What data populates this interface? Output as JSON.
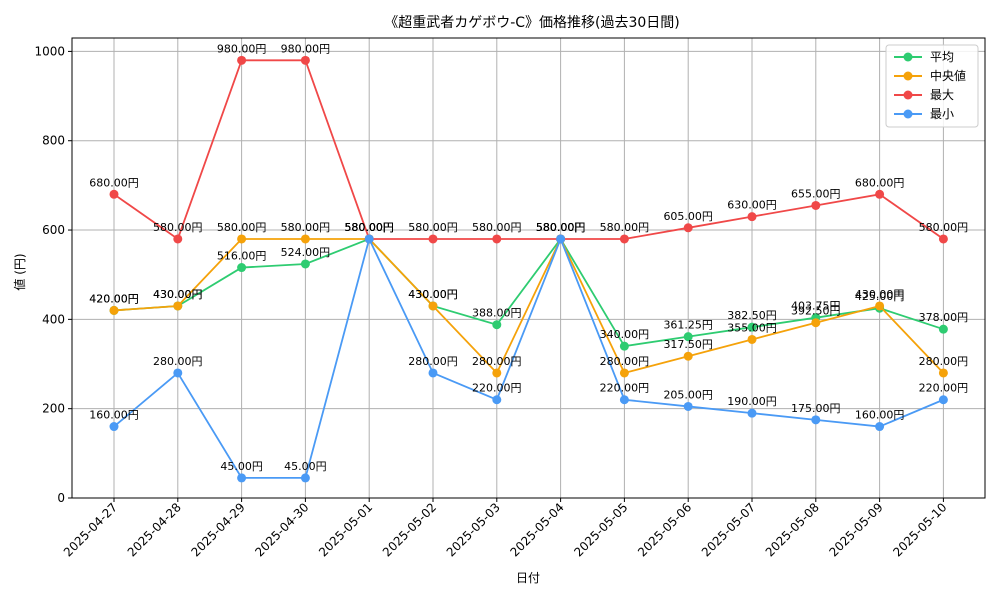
{
  "chart_data": {
    "type": "line",
    "title": "《超重武者カゲボウ-C》価格推移(過去30日間)",
    "xlabel": "日付",
    "ylabel": "値 (円)",
    "ylim": [
      0,
      1030
    ],
    "yticks": [
      0,
      200,
      400,
      600,
      800,
      1000
    ],
    "grid": true,
    "legend_position": "top-right",
    "value_suffix": "円",
    "categories": [
      "2025-04-27",
      "2025-04-28",
      "2025-04-29",
      "2025-04-30",
      "2025-05-01",
      "2025-05-02",
      "2025-05-03",
      "2025-05-04",
      "2025-05-05",
      "2025-05-06",
      "2025-05-07",
      "2025-05-08",
      "2025-05-09",
      "2025-05-10"
    ],
    "series": [
      {
        "name": "平均",
        "color": "#2ecc71",
        "values": [
          420.0,
          430.0,
          516.0,
          524.0,
          580.0,
          430.0,
          388.0,
          580.0,
          340.0,
          361.25,
          382.5,
          403.75,
          425.0,
          378.0
        ]
      },
      {
        "name": "中央値",
        "color": "#f5a20a",
        "values": [
          420.0,
          430.0,
          580.0,
          580.0,
          580.0,
          430.0,
          280.0,
          580.0,
          280.0,
          317.5,
          355.0,
          392.5,
          430.0,
          280.0
        ]
      },
      {
        "name": "最大",
        "color": "#f04848",
        "values": [
          680.0,
          580.0,
          980.0,
          980.0,
          580.0,
          580.0,
          580.0,
          580.0,
          580.0,
          605.0,
          630.0,
          655.0,
          680.0,
          580.0
        ]
      },
      {
        "name": "最小",
        "color": "#4a9af5",
        "values": [
          160.0,
          280.0,
          45.0,
          45.0,
          580.0,
          280.0,
          220.0,
          580.0,
          220.0,
          205.0,
          190.0,
          175.0,
          160.0,
          220.0
        ]
      }
    ]
  }
}
